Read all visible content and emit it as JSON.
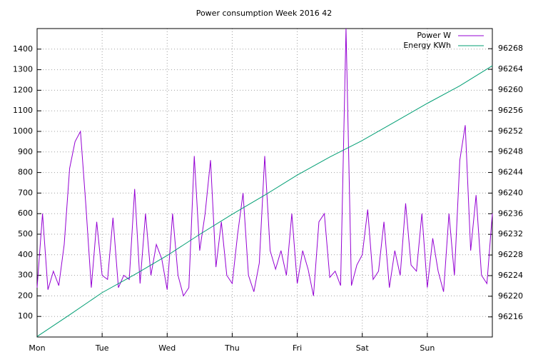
{
  "chart_data": {
    "type": "line",
    "title": "Power consumption Week 2016 42",
    "xlim": [
      0,
      168
    ],
    "xticks": [
      {
        "value": 0,
        "label": "Mon"
      },
      {
        "value": 24,
        "label": "Tue"
      },
      {
        "value": 48,
        "label": "Wed"
      },
      {
        "value": 72,
        "label": "Thu"
      },
      {
        "value": 96,
        "label": "Fri"
      },
      {
        "value": 120,
        "label": "Sat"
      },
      {
        "value": 144,
        "label": "Sun"
      }
    ],
    "ylim": [
      0,
      1500
    ],
    "yticks": [
      100,
      200,
      300,
      400,
      500,
      600,
      700,
      800,
      900,
      1000,
      1100,
      1200,
      1300,
      1400
    ],
    "y2lim": [
      96212.1,
      96271.9
    ],
    "y2ticks": [
      96216,
      96220,
      96224,
      96228,
      96232,
      96236,
      96240,
      96244,
      96248,
      96252,
      96256,
      96260,
      96264,
      96268
    ],
    "grid": true,
    "legend": "top-right",
    "series": [
      {
        "name": "Power W",
        "color": "#9400d3",
        "x": [
          0,
          2,
          4,
          6,
          8,
          10,
          12,
          14,
          16,
          18,
          20,
          22,
          24,
          26,
          28,
          30,
          32,
          34,
          36,
          38,
          40,
          42,
          44,
          46,
          48,
          50,
          52,
          54,
          56,
          58,
          60,
          62,
          64,
          66,
          68,
          70,
          72,
          74,
          76,
          78,
          80,
          82,
          84,
          86,
          88,
          90,
          92,
          94,
          96,
          98,
          100,
          102,
          104,
          106,
          108,
          110,
          112,
          114,
          116,
          118,
          120,
          122,
          124,
          126,
          128,
          130,
          132,
          134,
          136,
          138,
          140,
          142,
          144,
          146,
          148,
          150,
          152,
          154,
          156,
          158,
          160,
          162,
          164,
          166,
          168
        ],
        "values": [
          240,
          600,
          230,
          320,
          250,
          450,
          820,
          950,
          1000,
          640,
          240,
          560,
          300,
          280,
          580,
          240,
          300,
          280,
          720,
          260,
          600,
          300,
          450,
          380,
          230,
          600,
          300,
          200,
          240,
          880,
          420,
          600,
          860,
          340,
          560,
          300,
          260,
          500,
          700,
          300,
          220,
          360,
          880,
          420,
          330,
          420,
          300,
          600,
          260,
          420,
          330,
          200,
          560,
          600,
          290,
          320,
          250,
          1500,
          250,
          350,
          400,
          620,
          280,
          320,
          560,
          240,
          420,
          300,
          650,
          350,
          320,
          600,
          240,
          480,
          320,
          220,
          600,
          300,
          860,
          1030,
          420,
          690,
          300,
          260,
          600
        ]
      },
      {
        "name": "Energy KWh",
        "color": "#009e73",
        "axis": "y2",
        "x": [
          0,
          12,
          24,
          36,
          48,
          60,
          72,
          84,
          96,
          108,
          120,
          132,
          144,
          156,
          168
        ],
        "values": [
          96212.2,
          96216.4,
          96220.7,
          96224.2,
          96227.9,
          96232,
          96235.9,
          96239.6,
          96243.5,
          96247,
          96250.2,
          96253.8,
          96257.4,
          96260.8,
          96264.7
        ]
      }
    ]
  }
}
